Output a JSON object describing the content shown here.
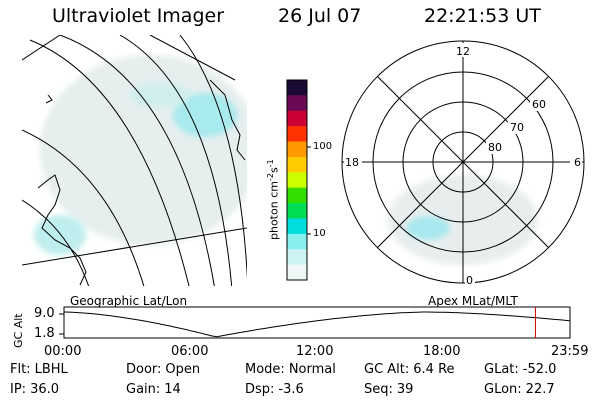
{
  "header": {
    "title": "Ultraviolet Imager",
    "date": "26 Jul 07",
    "time": "22:21:53 UT"
  },
  "colorbar": {
    "tick_labels": [
      "100",
      "10"
    ],
    "unit_main": "photon cm",
    "unit_exp1": "-2",
    "unit_s": "s",
    "unit_exp2": "-1",
    "colors": [
      "#1a0a33",
      "#6a0a55",
      "#cc0033",
      "#ff3300",
      "#ff9900",
      "#ffcc00",
      "#ccff00",
      "#33dd00",
      "#00dd55",
      "#00dddd",
      "#88eeee",
      "#ccf2f2",
      "#eef6f6"
    ]
  },
  "polar": {
    "mlt_labels": {
      "top": "12",
      "left": "18",
      "right": "6",
      "bottom": "0"
    },
    "lat_labels": [
      "60",
      "70",
      "80"
    ]
  },
  "panels": {
    "left_label": "Geographic Lat/Lon",
    "right_label": "Apex MLat/MLT"
  },
  "orbit": {
    "ylabel": "GC Alt",
    "y_ticks": [
      "9.0",
      "1.8"
    ],
    "x_ticks": [
      "00:00",
      "06:00",
      "12:00",
      "18:00",
      "23:59"
    ],
    "marker_time_hours": 22.36,
    "line_color": "#000000",
    "marker_color": "#cc0000"
  },
  "info": {
    "rows": [
      [
        {
          "k": "Flt:",
          "v": "LBHL"
        },
        {
          "k": "Door:",
          "v": "Open"
        },
        {
          "k": "Mode:",
          "v": "Normal"
        },
        {
          "k": "GC Alt:",
          "v": "6.4 Re"
        },
        {
          "k": "GLat:",
          "v": "-52.0"
        }
      ],
      [
        {
          "k": "IP:",
          "v": "36.0"
        },
        {
          "k": "Gain:",
          "v": "14"
        },
        {
          "k": "Dsp:",
          "v": "-3.6"
        },
        {
          "k": "Seq:",
          "v": "39"
        },
        {
          "k": "GLon:",
          "v": "22.7"
        }
      ]
    ]
  }
}
